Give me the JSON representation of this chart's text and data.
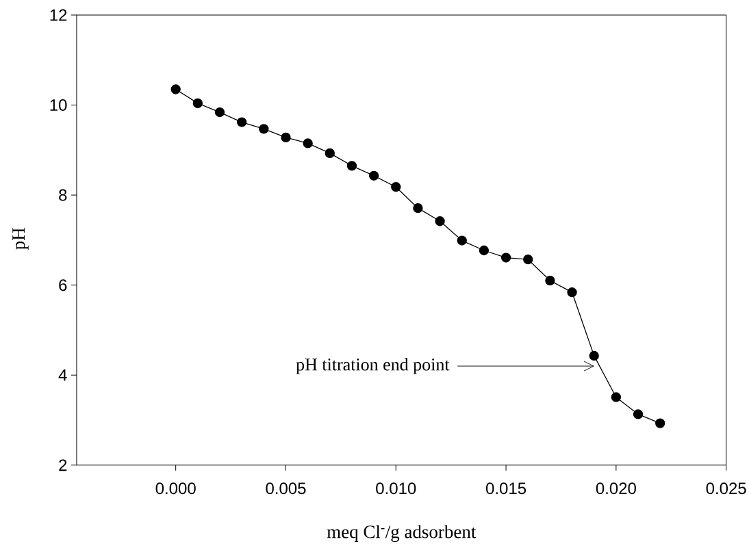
{
  "chart_data": {
    "type": "line",
    "xlabel": "meq Cl$^{-}$/g adsorbent",
    "ylabel": "pH",
    "x": [
      0.0,
      0.001,
      0.002,
      0.003,
      0.004,
      0.005,
      0.006,
      0.007,
      0.008,
      0.009,
      0.01,
      0.011,
      0.012,
      0.013,
      0.014,
      0.015,
      0.016,
      0.017,
      0.018,
      0.019,
      0.02,
      0.021,
      0.022
    ],
    "series": [
      {
        "color": "#000000",
        "values": [
          10.35,
          10.04,
          9.84,
          9.62,
          9.47,
          9.28,
          9.15,
          8.93,
          8.65,
          8.43,
          8.18,
          7.71,
          7.42,
          6.99,
          6.77,
          6.61,
          6.57,
          6.1,
          5.84,
          4.43,
          3.51,
          3.13,
          2.93
        ]
      }
    ],
    "xlim": [
      -0.0045,
      0.025
    ],
    "ylim": [
      2,
      12
    ],
    "xticks": [
      {
        "value": 0,
        "label": "0.000"
      },
      0.005,
      {
        "value": 0.01,
        "label": "0.010"
      },
      0.015,
      {
        "value": 0.02,
        "label": "0.020"
      },
      0.025
    ],
    "yticks": [
      2,
      4,
      6,
      8,
      10,
      12
    ],
    "marker": "circle",
    "line_style": "solid",
    "annotations": [
      "pH titration end point"
    ]
  }
}
